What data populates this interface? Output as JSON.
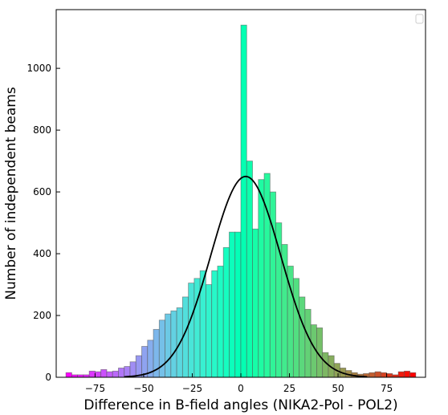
{
  "chart_data": {
    "type": "bar",
    "xlabel": "Difference in B-field angles (NIKA2-Pol - POL2)",
    "ylabel": "Number of independent beams",
    "xlim": [
      -95,
      95
    ],
    "ylim": [
      0,
      1190
    ],
    "xticks": [
      -75,
      -50,
      -25,
      0,
      25,
      50,
      75
    ],
    "yticks": [
      0,
      200,
      400,
      600,
      800,
      1000
    ],
    "grid": false,
    "legend": "top-right",
    "bin_width": 3,
    "bin_start": -90,
    "counts": [
      15,
      8,
      8,
      8,
      20,
      18,
      25,
      18,
      20,
      30,
      35,
      50,
      70,
      100,
      120,
      155,
      185,
      205,
      215,
      225,
      260,
      305,
      320,
      345,
      300,
      345,
      360,
      420,
      470,
      470,
      1140,
      700,
      480,
      640,
      660,
      600,
      500,
      430,
      360,
      320,
      260,
      220,
      170,
      160,
      80,
      70,
      45,
      30,
      22,
      15,
      10,
      12,
      15,
      18,
      15,
      12,
      8,
      18,
      20,
      15
    ],
    "fit_curve": {
      "type": "gaussian",
      "amplitude": 650,
      "mean": 2.5,
      "sigma": 18
    },
    "colormap": "rainbow"
  }
}
